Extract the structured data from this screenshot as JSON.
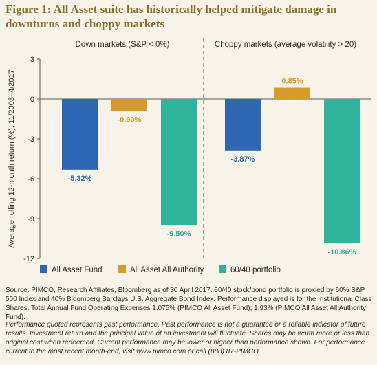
{
  "title": "Figure 1: All Asset suite has historically helped mitigate damage in downturns and choppy markets",
  "chart_data": {
    "type": "bar",
    "ylabel": "Average rolling 12-month return (%), 11/2003–4/2017",
    "ylim": [
      -12,
      3
    ],
    "yticks": [
      3,
      0,
      -3,
      -6,
      -9,
      -12
    ],
    "grid": false,
    "legend_placement": "bottom",
    "panels": [
      {
        "label": "Down markets (S&P < 0%)",
        "values": [
          -5.32,
          -0.9,
          -9.5
        ],
        "value_labels": [
          "-5.32%",
          "-0.90%",
          "-9.50%"
        ]
      },
      {
        "label": "Choppy markets (average volatility > 20)",
        "values": [
          -3.87,
          0.85,
          -10.86
        ],
        "value_labels": [
          "-3.87%",
          "0.85%",
          "-10.86%"
        ]
      }
    ],
    "series": [
      {
        "name": "All Asset Fund",
        "color": "#2e68b2"
      },
      {
        "name": "All Asset All Authority",
        "color": "#d79a2c"
      },
      {
        "name": "60/40 portfolio",
        "color": "#2fb39b"
      }
    ]
  },
  "source_note": "Source: PIMCO, Research Affiliates, Bloomberg as of 30 April 2017. 60/40 stock/bond portfolio is proxied by 60% S&P 500 Index and 40% Bloomberg Barclays U.S. Aggregate Bond Index. Performance displayed is for the Institutional Class Shares. Total Annual Fund Operating Expenses 1.075% (PIMCO All Asset Fund); 1.93% (PIMCO All Asset All Authority Fund).",
  "disclaimer": "Performance quoted represents past performance. Past performance is not a guarantee or a reliable indicator of future results. Investment return and the principal value of an investment will fluctuate. Shares may be worth more or less than original cost when redeemed. Current performance may be lower or higher than performance shown. For performance current to the most recent month-end, visit www.pimco.com or call (888) 87-PIMCO."
}
